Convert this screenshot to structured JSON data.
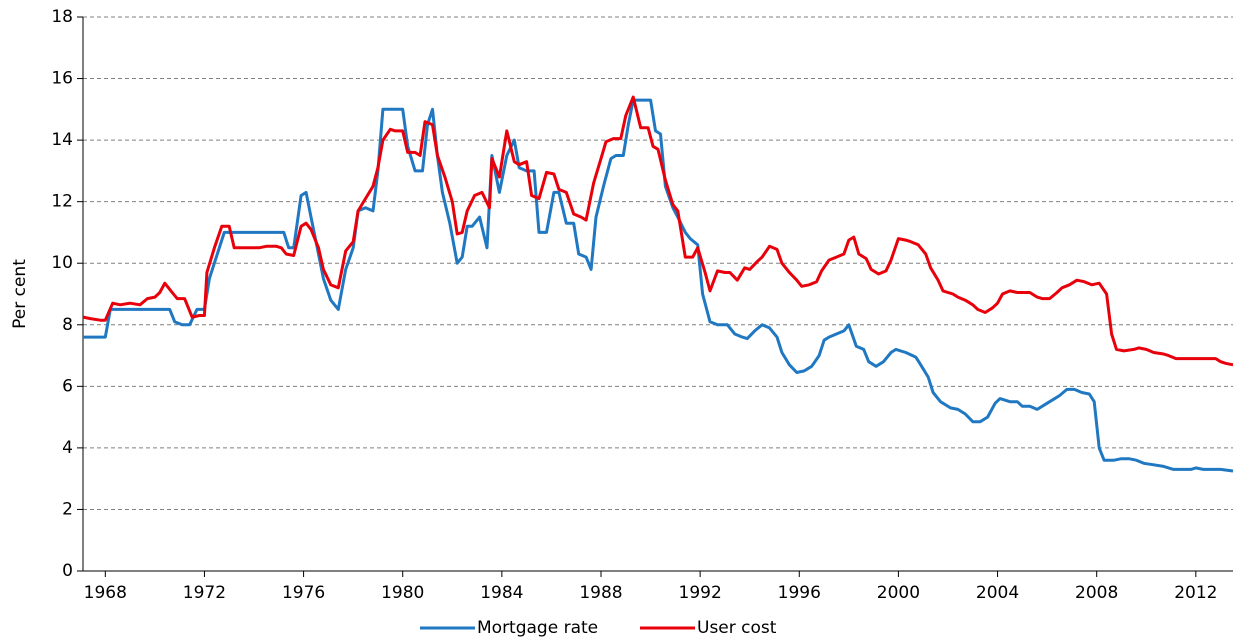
{
  "chart_data": {
    "type": "line",
    "y_label": "Per cent",
    "xlim": [
      1967.1,
      2013.5
    ],
    "xticks": [
      1968,
      1972,
      1976,
      1980,
      1984,
      1988,
      1992,
      1996,
      2000,
      2004,
      2008,
      2012
    ],
    "ylim": [
      0,
      18
    ],
    "yticks": [
      0,
      2,
      4,
      6,
      8,
      10,
      12,
      14,
      16,
      18
    ],
    "grid": true,
    "legend": "bottom",
    "series": [
      {
        "name": "Mortgage rate",
        "color": "#1f78c1",
        "x": [
          1967.1,
          1968.0,
          1968.2,
          1970.6,
          1970.8,
          1971.1,
          1971.4,
          1971.7,
          1972.0,
          1972.2,
          1972.6,
          1972.8,
          1975.2,
          1975.4,
          1975.6,
          1975.9,
          1976.1,
          1976.3,
          1976.6,
          1976.8,
          1977.1,
          1977.4,
          1977.7,
          1978.0,
          1978.2,
          1978.5,
          1978.8,
          1979.0,
          1979.2,
          1980.0,
          1980.2,
          1980.5,
          1980.8,
          1981.0,
          1981.2,
          1981.4,
          1981.6,
          1981.9,
          1982.2,
          1982.4,
          1982.6,
          1982.8,
          1983.1,
          1983.4,
          1983.6,
          1983.9,
          1984.2,
          1984.5,
          1984.7,
          1985.0,
          1985.3,
          1985.5,
          1985.8,
          1986.1,
          1986.3,
          1986.6,
          1986.9,
          1987.1,
          1987.4,
          1987.6,
          1987.8,
          1988.1,
          1988.4,
          1988.6,
          1988.9,
          1989.1,
          1989.3,
          1990.0,
          1990.2,
          1990.4,
          1990.6,
          1990.9,
          1991.1,
          1991.4,
          1991.6,
          1991.9,
          1992.1,
          1992.4,
          1992.7,
          1993.1,
          1993.4,
          1993.7,
          1993.9,
          1994.2,
          1994.5,
          1994.8,
          1995.1,
          1995.3,
          1995.6,
          1995.9,
          1996.2,
          1996.5,
          1996.8,
          1997.0,
          1997.2,
          1997.5,
          1997.8,
          1998.0,
          1998.3,
          1998.6,
          1998.8,
          1999.1,
          1999.4,
          1999.7,
          1999.9,
          2000.3,
          2000.7,
          2000.9,
          2001.2,
          2001.4,
          2001.7,
          2002.1,
          2002.4,
          2002.7,
          2003.0,
          2003.3,
          2003.6,
          2003.9,
          2004.1,
          2004.5,
          2004.8,
          2005.0,
          2005.3,
          2005.6,
          2005.9,
          2006.2,
          2006.5,
          2006.8,
          2007.1,
          2007.4,
          2007.7,
          2007.9,
          2008.1,
          2008.3,
          2008.7,
          2009.0,
          2009.3,
          2009.6,
          2009.9,
          2010.3,
          2010.7,
          2011.1,
          2011.8,
          2012.0,
          2012.3,
          2013.0,
          2013.5
        ],
        "values": [
          7.6,
          7.6,
          8.5,
          8.5,
          8.1,
          8.0,
          8.0,
          8.5,
          8.5,
          9.5,
          10.5,
          11.0,
          11.0,
          10.5,
          10.5,
          12.2,
          12.3,
          11.5,
          10.3,
          9.5,
          8.8,
          8.5,
          9.8,
          10.5,
          11.7,
          11.8,
          11.7,
          13.0,
          15.0,
          15.0,
          13.8,
          13.0,
          13.0,
          14.5,
          15.0,
          13.5,
          12.3,
          11.3,
          10.0,
          10.2,
          11.2,
          11.2,
          11.5,
          10.5,
          13.5,
          12.3,
          13.5,
          14.0,
          13.1,
          13.0,
          13.0,
          11.0,
          11.0,
          12.3,
          12.3,
          11.3,
          11.3,
          10.3,
          10.2,
          9.8,
          11.5,
          12.5,
          13.4,
          13.5,
          13.5,
          14.5,
          15.3,
          15.3,
          14.3,
          14.2,
          12.5,
          11.8,
          11.5,
          11.0,
          10.8,
          10.6,
          9.0,
          8.1,
          8.0,
          8.0,
          7.7,
          7.6,
          7.55,
          7.8,
          8.0,
          7.9,
          7.6,
          7.1,
          6.7,
          6.45,
          6.5,
          6.65,
          7.0,
          7.5,
          7.6,
          7.7,
          7.8,
          8.0,
          7.3,
          7.2,
          6.8,
          6.65,
          6.8,
          7.1,
          7.2,
          7.1,
          6.95,
          6.7,
          6.3,
          5.8,
          5.5,
          5.3,
          5.25,
          5.1,
          4.85,
          4.85,
          5.0,
          5.45,
          5.6,
          5.5,
          5.5,
          5.35,
          5.35,
          5.25,
          5.4,
          5.55,
          5.7,
          5.9,
          5.9,
          5.8,
          5.75,
          5.5,
          4.0,
          3.6,
          3.6,
          3.65,
          3.65,
          3.6,
          3.5,
          3.45,
          3.4,
          3.3,
          3.3,
          3.35,
          3.3,
          3.3,
          3.25
        ]
      },
      {
        "name": "User cost",
        "color": "#e8000b",
        "x": [
          1967.1,
          1967.4,
          1967.8,
          1968.0,
          1968.3,
          1968.6,
          1969.0,
          1969.4,
          1969.7,
          1970.0,
          1970.2,
          1970.4,
          1970.7,
          1970.9,
          1971.2,
          1971.5,
          1971.8,
          1972.0,
          1972.1,
          1972.4,
          1972.7,
          1973.0,
          1973.2,
          1973.8,
          1974.2,
          1974.5,
          1974.9,
          1975.1,
          1975.3,
          1975.6,
          1975.9,
          1976.1,
          1976.3,
          1976.6,
          1976.8,
          1977.1,
          1977.4,
          1977.7,
          1978.0,
          1978.2,
          1978.5,
          1978.8,
          1979.0,
          1979.2,
          1979.5,
          1979.7,
          1980.0,
          1980.2,
          1980.5,
          1980.7,
          1980.9,
          1981.2,
          1981.4,
          1981.7,
          1982.0,
          1982.2,
          1982.4,
          1982.6,
          1982.9,
          1983.2,
          1983.5,
          1983.6,
          1983.9,
          1984.2,
          1984.5,
          1984.7,
          1985.0,
          1985.2,
          1985.5,
          1985.8,
          1986.1,
          1986.3,
          1986.6,
          1986.9,
          1987.2,
          1987.4,
          1987.7,
          1988.0,
          1988.2,
          1988.5,
          1988.8,
          1989.0,
          1989.3,
          1989.6,
          1989.9,
          1990.1,
          1990.3,
          1990.6,
          1990.9,
          1991.1,
          1991.4,
          1991.7,
          1991.9,
          1992.2,
          1992.4,
          1992.7,
          1993.0,
          1993.2,
          1993.5,
          1993.8,
          1994.0,
          1994.3,
          1994.5,
          1994.8,
          1995.1,
          1995.3,
          1995.6,
          1995.9,
          1996.1,
          1996.4,
          1996.7,
          1996.9,
          1997.2,
          1997.5,
          1997.8,
          1998.0,
          1998.2,
          1998.4,
          1998.7,
          1998.9,
          1999.2,
          1999.5,
          1999.7,
          2000.0,
          2000.3,
          2000.5,
          2000.8,
          2001.1,
          2001.3,
          2001.6,
          2001.8,
          2002.2,
          2002.4,
          2002.7,
          2003.0,
          2003.2,
          2003.5,
          2003.8,
          2004.0,
          2004.2,
          2004.5,
          2004.8,
          2005.0,
          2005.3,
          2005.6,
          2005.8,
          2006.1,
          2006.4,
          2006.6,
          2006.9,
          2007.2,
          2007.5,
          2007.8,
          2008.1,
          2008.4,
          2008.6,
          2008.8,
          2009.1,
          2009.5,
          2009.7,
          2010.0,
          2010.3,
          2010.7,
          2010.9,
          2011.2,
          2011.8,
          2012.4,
          2012.8,
          2013.0,
          2013.2,
          2013.5
        ],
        "values": [
          8.25,
          8.2,
          8.15,
          8.15,
          8.7,
          8.65,
          8.7,
          8.65,
          8.85,
          8.9,
          9.05,
          9.35,
          9.05,
          8.85,
          8.85,
          8.25,
          8.3,
          8.3,
          9.7,
          10.5,
          11.2,
          11.2,
          10.5,
          10.5,
          10.5,
          10.55,
          10.55,
          10.5,
          10.3,
          10.25,
          11.2,
          11.3,
          11.1,
          10.5,
          9.8,
          9.3,
          9.2,
          10.4,
          10.7,
          11.7,
          12.1,
          12.5,
          13.1,
          14.0,
          14.35,
          14.3,
          14.3,
          13.6,
          13.6,
          13.5,
          14.6,
          14.5,
          13.5,
          12.8,
          12.0,
          10.95,
          11.0,
          11.7,
          12.2,
          12.3,
          11.8,
          13.4,
          12.8,
          14.3,
          13.3,
          13.2,
          13.3,
          12.2,
          12.1,
          12.95,
          12.9,
          12.4,
          12.3,
          11.6,
          11.5,
          11.4,
          12.6,
          13.4,
          13.95,
          14.05,
          14.05,
          14.8,
          15.4,
          14.4,
          14.4,
          13.8,
          13.7,
          12.7,
          11.9,
          11.7,
          10.2,
          10.2,
          10.5,
          9.7,
          9.1,
          9.75,
          9.7,
          9.7,
          9.45,
          9.85,
          9.8,
          10.05,
          10.2,
          10.55,
          10.45,
          10.0,
          9.7,
          9.45,
          9.25,
          9.3,
          9.4,
          9.75,
          10.1,
          10.2,
          10.3,
          10.75,
          10.85,
          10.3,
          10.15,
          9.8,
          9.65,
          9.75,
          10.1,
          10.8,
          10.75,
          10.7,
          10.6,
          10.3,
          9.85,
          9.45,
          9.1,
          9.0,
          8.9,
          8.8,
          8.65,
          8.5,
          8.4,
          8.55,
          8.7,
          9.0,
          9.1,
          9.05,
          9.05,
          9.05,
          8.9,
          8.85,
          8.85,
          9.05,
          9.2,
          9.3,
          9.45,
          9.4,
          9.3,
          9.35,
          9.0,
          7.7,
          7.2,
          7.15,
          7.2,
          7.25,
          7.2,
          7.1,
          7.05,
          7.0,
          6.9,
          6.9,
          6.9,
          6.9,
          6.8,
          6.75,
          6.7
        ]
      }
    ]
  }
}
